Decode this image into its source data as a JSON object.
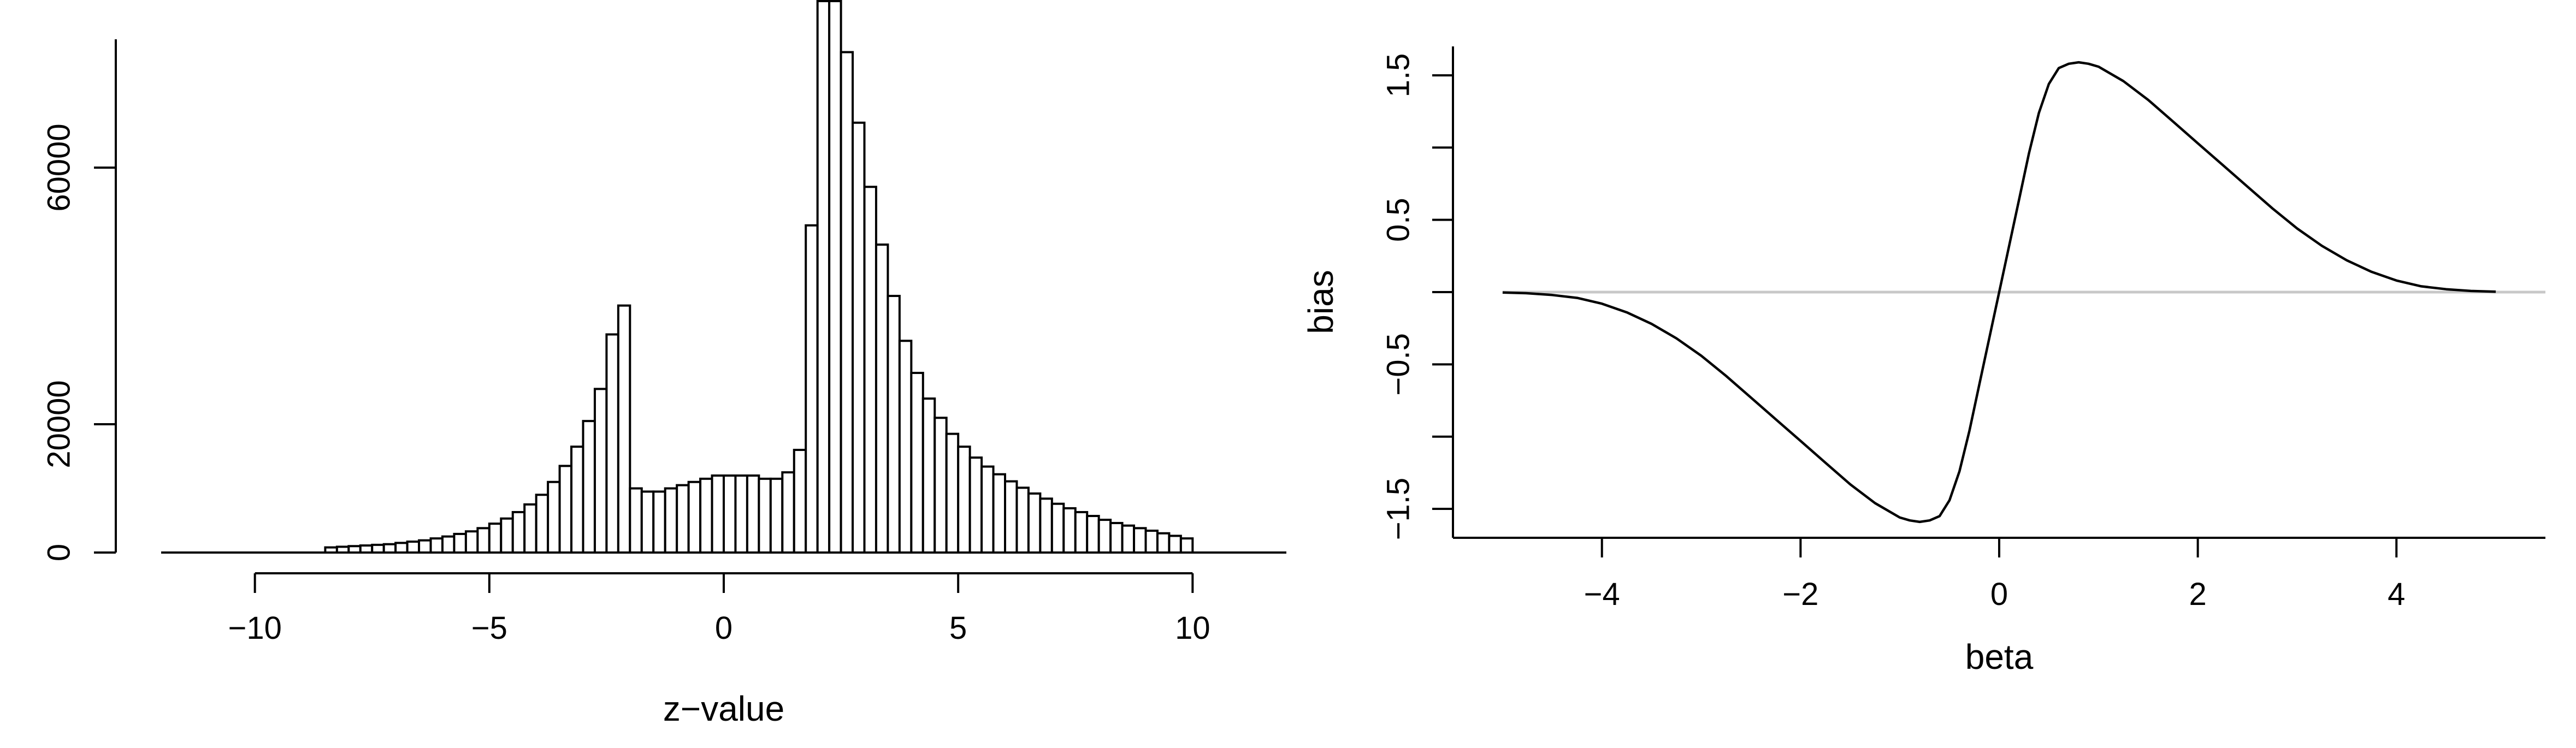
{
  "colors": {
    "ink": "#000000",
    "reference_line": "#c8c8c8",
    "background": "#ffffff"
  },
  "chart_data": [
    {
      "type": "bar",
      "subtype": "histogram",
      "title": "",
      "xlabel": "z−value",
      "ylabel": "",
      "xlim": [
        -12,
        12
      ],
      "ylim": [
        0,
        80000
      ],
      "xticks": [
        -10,
        -5,
        0,
        5,
        10
      ],
      "xtick_labels": [
        "−10",
        "−5",
        "0",
        "5",
        "10"
      ],
      "yticks": [
        0,
        20000,
        60000
      ],
      "ytick_labels": [
        "0",
        "20000",
        "60000"
      ],
      "y_axis_extent": [
        0,
        80000
      ],
      "bin_width": 0.25,
      "bins_start": [
        -8.5,
        -8.25,
        -8.0,
        -7.75,
        -7.5,
        -7.25,
        -7.0,
        -6.75,
        -6.5,
        -6.25,
        -6.0,
        -5.75,
        -5.5,
        -5.25,
        -5.0,
        -4.75,
        -4.5,
        -4.25,
        -4.0,
        -3.75,
        -3.5,
        -3.25,
        -3.0,
        -2.75,
        -2.5,
        -2.25,
        -2.0,
        -1.75,
        -1.5,
        -1.25,
        -1.0,
        -0.75,
        -0.5,
        -0.25,
        0.0,
        0.25,
        0.5,
        0.75,
        1.0,
        1.25,
        1.5,
        1.75,
        2.0,
        2.25,
        2.5,
        2.75,
        3.0,
        3.25,
        3.5,
        3.75,
        4.0,
        4.25,
        4.5,
        4.75,
        5.0,
        5.25,
        5.5,
        5.75,
        6.0,
        6.25,
        6.5,
        6.75,
        7.0,
        7.25,
        7.5,
        7.75,
        8.0,
        8.25,
        8.5,
        8.75,
        9.0,
        9.25,
        9.5,
        9.75
      ],
      "values": [
        800,
        900,
        1000,
        1100,
        1200,
        1300,
        1500,
        1700,
        1900,
        2200,
        2500,
        2900,
        3300,
        3800,
        4500,
        5300,
        6300,
        7500,
        9000,
        11000,
        13500,
        16500,
        20500,
        25500,
        34000,
        38500,
        10000,
        9500,
        9500,
        10000,
        10500,
        11000,
        11500,
        12000,
        12000,
        12000,
        12000,
        11500,
        11500,
        12500,
        16000,
        51000,
        96000,
        91000,
        78000,
        67000,
        57000,
        48000,
        40000,
        33000,
        28000,
        24000,
        21000,
        18500,
        16500,
        14800,
        13400,
        12200,
        11100,
        10100,
        9200,
        8400,
        7600,
        6900,
        6300,
        5700,
        5100,
        4600,
        4200,
        3800,
        3400,
        3000,
        2600,
        2200
      ],
      "grid": false,
      "legend": "none"
    },
    {
      "type": "line",
      "title": "",
      "xlabel": "beta",
      "ylabel": "bias",
      "xlim": [
        -5.5,
        5.5
      ],
      "ylim": [
        -1.7,
        1.7
      ],
      "xticks": [
        -4,
        -2,
        0,
        2,
        4
      ],
      "xtick_labels": [
        "−4",
        "−2",
        "0",
        "2",
        "4"
      ],
      "yticks": [
        -1.5,
        -1,
        -0.5,
        0,
        0.5,
        1,
        1.5
      ],
      "ytick_labels": [
        "−1.5",
        "",
        "−0.5",
        "",
        "0.5",
        "",
        "1.5"
      ],
      "reference_line_y": 0,
      "series": [
        {
          "x": [
            -5.0,
            -4.75,
            -4.5,
            -4.25,
            -4.0,
            -3.75,
            -3.5,
            -3.25,
            -3.0,
            -2.75,
            -2.5,
            -2.25,
            -2.0,
            -1.75,
            -1.5,
            -1.25,
            -1.0,
            -0.9,
            -0.8,
            -0.7,
            -0.6,
            -0.5,
            -0.4,
            -0.3,
            -0.2,
            -0.1,
            0.0,
            0.1,
            0.2,
            0.3,
            0.4,
            0.5,
            0.6,
            0.7,
            0.8,
            0.9,
            1.0,
            1.25,
            1.5,
            1.75,
            2.0,
            2.25,
            2.5,
            2.75,
            3.0,
            3.25,
            3.5,
            3.75,
            4.0,
            4.25,
            4.5,
            4.75,
            5.0
          ],
          "y": [
            -0.003,
            -0.008,
            -0.02,
            -0.04,
            -0.08,
            -0.14,
            -0.22,
            -0.32,
            -0.44,
            -0.58,
            -0.73,
            -0.88,
            -1.03,
            -1.18,
            -1.33,
            -1.46,
            -1.56,
            -1.58,
            -1.59,
            -1.58,
            -1.55,
            -1.44,
            -1.24,
            -0.96,
            -0.64,
            -0.32,
            0.0,
            0.32,
            0.64,
            0.96,
            1.24,
            1.44,
            1.55,
            1.58,
            1.59,
            1.58,
            1.56,
            1.46,
            1.33,
            1.18,
            1.03,
            0.88,
            0.73,
            0.58,
            0.44,
            0.32,
            0.22,
            0.14,
            0.08,
            0.04,
            0.02,
            0.008,
            0.003
          ]
        }
      ],
      "grid": false,
      "legend": "none"
    }
  ]
}
